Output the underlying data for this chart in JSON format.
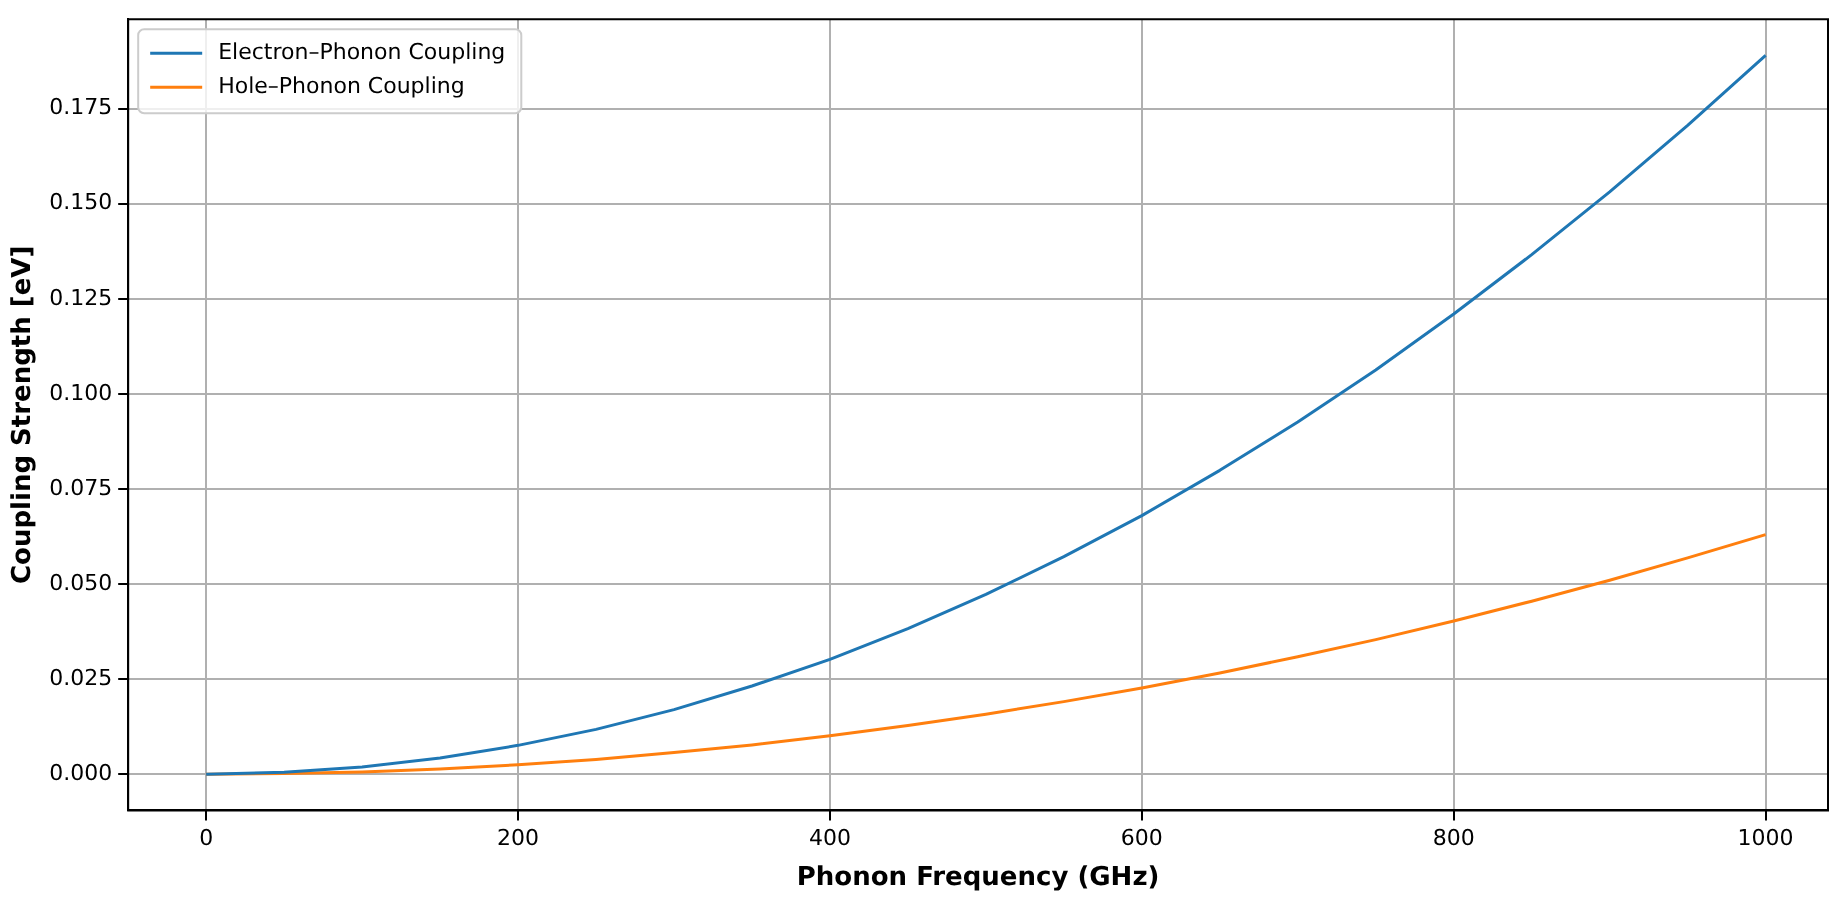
{
  "chart_data": {
    "type": "line",
    "xlabel": "Phonon Frequency (GHz)",
    "ylabel": "Coupling Strength [eV]",
    "x": [
      0,
      50,
      100,
      150,
      200,
      250,
      300,
      350,
      400,
      450,
      500,
      550,
      600,
      650,
      700,
      750,
      800,
      850,
      900,
      950,
      1000
    ],
    "series": [
      {
        "name": "Electron–Phonon Coupling",
        "color": "#1f77b4",
        "values": [
          0,
          0.0005,
          0.0019,
          0.0043,
          0.0076,
          0.0118,
          0.017,
          0.0232,
          0.0302,
          0.0383,
          0.0473,
          0.0572,
          0.068,
          0.0799,
          0.0926,
          0.1063,
          0.121,
          0.1366,
          0.1531,
          0.1706,
          0.189
        ]
      },
      {
        "name": "Hole–Phonon Coupling",
        "color": "#ff7f0e",
        "values": [
          0,
          0.0002,
          0.0006,
          0.0014,
          0.0025,
          0.0039,
          0.0057,
          0.0077,
          0.0101,
          0.0128,
          0.0158,
          0.0191,
          0.0227,
          0.0266,
          0.0309,
          0.0354,
          0.0403,
          0.0455,
          0.051,
          0.0569,
          0.063
        ]
      }
    ],
    "xlim": [
      -50,
      1040
    ],
    "xticks": [
      0,
      200,
      400,
      600,
      800,
      1000
    ],
    "ylim": [
      -0.0095,
      0.1985
    ],
    "yticks": [
      {
        "value": 0,
        "label": "0.000"
      },
      0.025,
      {
        "value": 0.05,
        "label": "0.050"
      },
      0.075,
      {
        "value": 0.1,
        "label": "0.100"
      },
      0.125,
      {
        "value": 0.15,
        "label": "0.150"
      },
      0.175
    ],
    "grid": true,
    "legend": "top left",
    "marker": "none",
    "line_style": "solid"
  }
}
